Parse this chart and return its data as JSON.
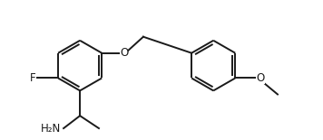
{
  "bg_color": "#ffffff",
  "line_color": "#1a1a1a",
  "line_width": 1.4,
  "font_size": 8.5,
  "figsize": [
    3.56,
    1.55
  ],
  "dpi": 100,
  "xlim": [
    0,
    10.5
  ],
  "ylim": [
    -1.5,
    3.2
  ]
}
